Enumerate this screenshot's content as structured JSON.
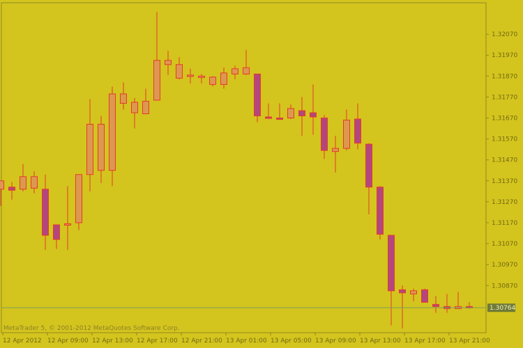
{
  "colors": {
    "background": "#d4c41e",
    "frame": "#8f8a1c",
    "wick": "#e53a2a",
    "bull_body": "#dd9850",
    "bear_body": "#b3477d",
    "body_outline": "#e53a2a",
    "price_line": "#7aa15a",
    "price_label_bg": "#6f7b36",
    "price_label_text": "#f2f0c8",
    "axis_text": "#6f6a12"
  },
  "watermark": "MetaTrader 5, © 2001-2012 MetaQuotes Software Corp.",
  "chart_data": {
    "type": "candlestick",
    "title": "",
    "xlabel": "",
    "ylabel": "",
    "ylim": [
      1.30645,
      1.3222
    ],
    "grid": false,
    "y_ticks": [
      "1.32070",
      "1.31970",
      "1.31870",
      "1.31770",
      "1.31670",
      "1.31570",
      "1.31470",
      "1.31370",
      "1.31270",
      "1.31170",
      "1.31070",
      "1.30970",
      "1.30870"
    ],
    "x_ticks": [
      "12 Apr 2012",
      "12 Apr 09:00",
      "12 Apr 13:00",
      "12 Apr 17:00",
      "12 Apr 21:00",
      "13 Apr 01:00",
      "13 Apr 05:00",
      "13 Apr 09:00",
      "13 Apr 13:00",
      "13 Apr 17:00",
      "13 Apr 21:00"
    ],
    "current_price": "1.30764",
    "candles": [
      {
        "open": 1.3133,
        "high": 1.3137,
        "low": 1.3125,
        "close": 1.3137
      },
      {
        "open": 1.3134,
        "high": 1.31365,
        "low": 1.3128,
        "close": 1.31325
      },
      {
        "open": 1.3133,
        "high": 1.3145,
        "low": 1.3132,
        "close": 1.3139
      },
      {
        "open": 1.31335,
        "high": 1.31415,
        "low": 1.3131,
        "close": 1.3139
      },
      {
        "open": 1.3133,
        "high": 1.314,
        "low": 1.3104,
        "close": 1.3111
      },
      {
        "open": 1.3116,
        "high": 1.3116,
        "low": 1.31045,
        "close": 1.3109
      },
      {
        "open": 1.31165,
        "high": 1.31345,
        "low": 1.3104,
        "close": 1.31165
      },
      {
        "open": 1.3117,
        "high": 1.314,
        "low": 1.31135,
        "close": 1.314
      },
      {
        "open": 1.314,
        "high": 1.3176,
        "low": 1.3132,
        "close": 1.3164
      },
      {
        "open": 1.3142,
        "high": 1.3168,
        "low": 1.3136,
        "close": 1.3164
      },
      {
        "open": 1.3142,
        "high": 1.3182,
        "low": 1.31345,
        "close": 1.31785
      },
      {
        "open": 1.3174,
        "high": 1.3184,
        "low": 1.3171,
        "close": 1.31785
      },
      {
        "open": 1.31695,
        "high": 1.31765,
        "low": 1.3162,
        "close": 1.31745
      },
      {
        "open": 1.3169,
        "high": 1.3181,
        "low": 1.3169,
        "close": 1.3175
      },
      {
        "open": 1.31755,
        "high": 1.32175,
        "low": 1.31755,
        "close": 1.31945
      },
      {
        "open": 1.31925,
        "high": 1.3199,
        "low": 1.31875,
        "close": 1.31945
      },
      {
        "open": 1.3186,
        "high": 1.3196,
        "low": 1.31855,
        "close": 1.31925
      },
      {
        "open": 1.3187,
        "high": 1.31905,
        "low": 1.31835,
        "close": 1.31875
      },
      {
        "open": 1.31865,
        "high": 1.3188,
        "low": 1.31835,
        "close": 1.3187
      },
      {
        "open": 1.3183,
        "high": 1.3187,
        "low": 1.3182,
        "close": 1.31865
      },
      {
        "open": 1.3183,
        "high": 1.3191,
        "low": 1.3181,
        "close": 1.31885
      },
      {
        "open": 1.3188,
        "high": 1.3192,
        "low": 1.31855,
        "close": 1.31905
      },
      {
        "open": 1.3188,
        "high": 1.31995,
        "low": 1.31875,
        "close": 1.3191
      },
      {
        "open": 1.3188,
        "high": 1.3188,
        "low": 1.3165,
        "close": 1.3168
      },
      {
        "open": 1.31675,
        "high": 1.3174,
        "low": 1.31665,
        "close": 1.3167
      },
      {
        "open": 1.3167,
        "high": 1.3174,
        "low": 1.31665,
        "close": 1.31665
      },
      {
        "open": 1.3167,
        "high": 1.31735,
        "low": 1.31665,
        "close": 1.31715
      },
      {
        "open": 1.31705,
        "high": 1.3177,
        "low": 1.31585,
        "close": 1.3168
      },
      {
        "open": 1.31695,
        "high": 1.3183,
        "low": 1.3159,
        "close": 1.31675
      },
      {
        "open": 1.3167,
        "high": 1.31685,
        "low": 1.31475,
        "close": 1.31515
      },
      {
        "open": 1.3151,
        "high": 1.31585,
        "low": 1.3141,
        "close": 1.31525
      },
      {
        "open": 1.31525,
        "high": 1.3171,
        "low": 1.31515,
        "close": 1.3166
      },
      {
        "open": 1.31665,
        "high": 1.3174,
        "low": 1.3152,
        "close": 1.3155
      },
      {
        "open": 1.31545,
        "high": 1.3155,
        "low": 1.3121,
        "close": 1.3134
      },
      {
        "open": 1.3134,
        "high": 1.31345,
        "low": 1.3109,
        "close": 1.31115
      },
      {
        "open": 1.3111,
        "high": 1.3111,
        "low": 1.3068,
        "close": 1.30845
      },
      {
        "open": 1.3085,
        "high": 1.3087,
        "low": 1.30665,
        "close": 1.30835
      },
      {
        "open": 1.3083,
        "high": 1.30855,
        "low": 1.30795,
        "close": 1.30845
      },
      {
        "open": 1.3085,
        "high": 1.30855,
        "low": 1.3079,
        "close": 1.3079
      },
      {
        "open": 1.3078,
        "high": 1.3082,
        "low": 1.3074,
        "close": 1.3077
      },
      {
        "open": 1.3077,
        "high": 1.3083,
        "low": 1.3074,
        "close": 1.3076
      },
      {
        "open": 1.3076,
        "high": 1.3084,
        "low": 1.3076,
        "close": 1.3077
      },
      {
        "open": 1.3077,
        "high": 1.3079,
        "low": 1.3076,
        "close": 1.30764
      }
    ]
  }
}
